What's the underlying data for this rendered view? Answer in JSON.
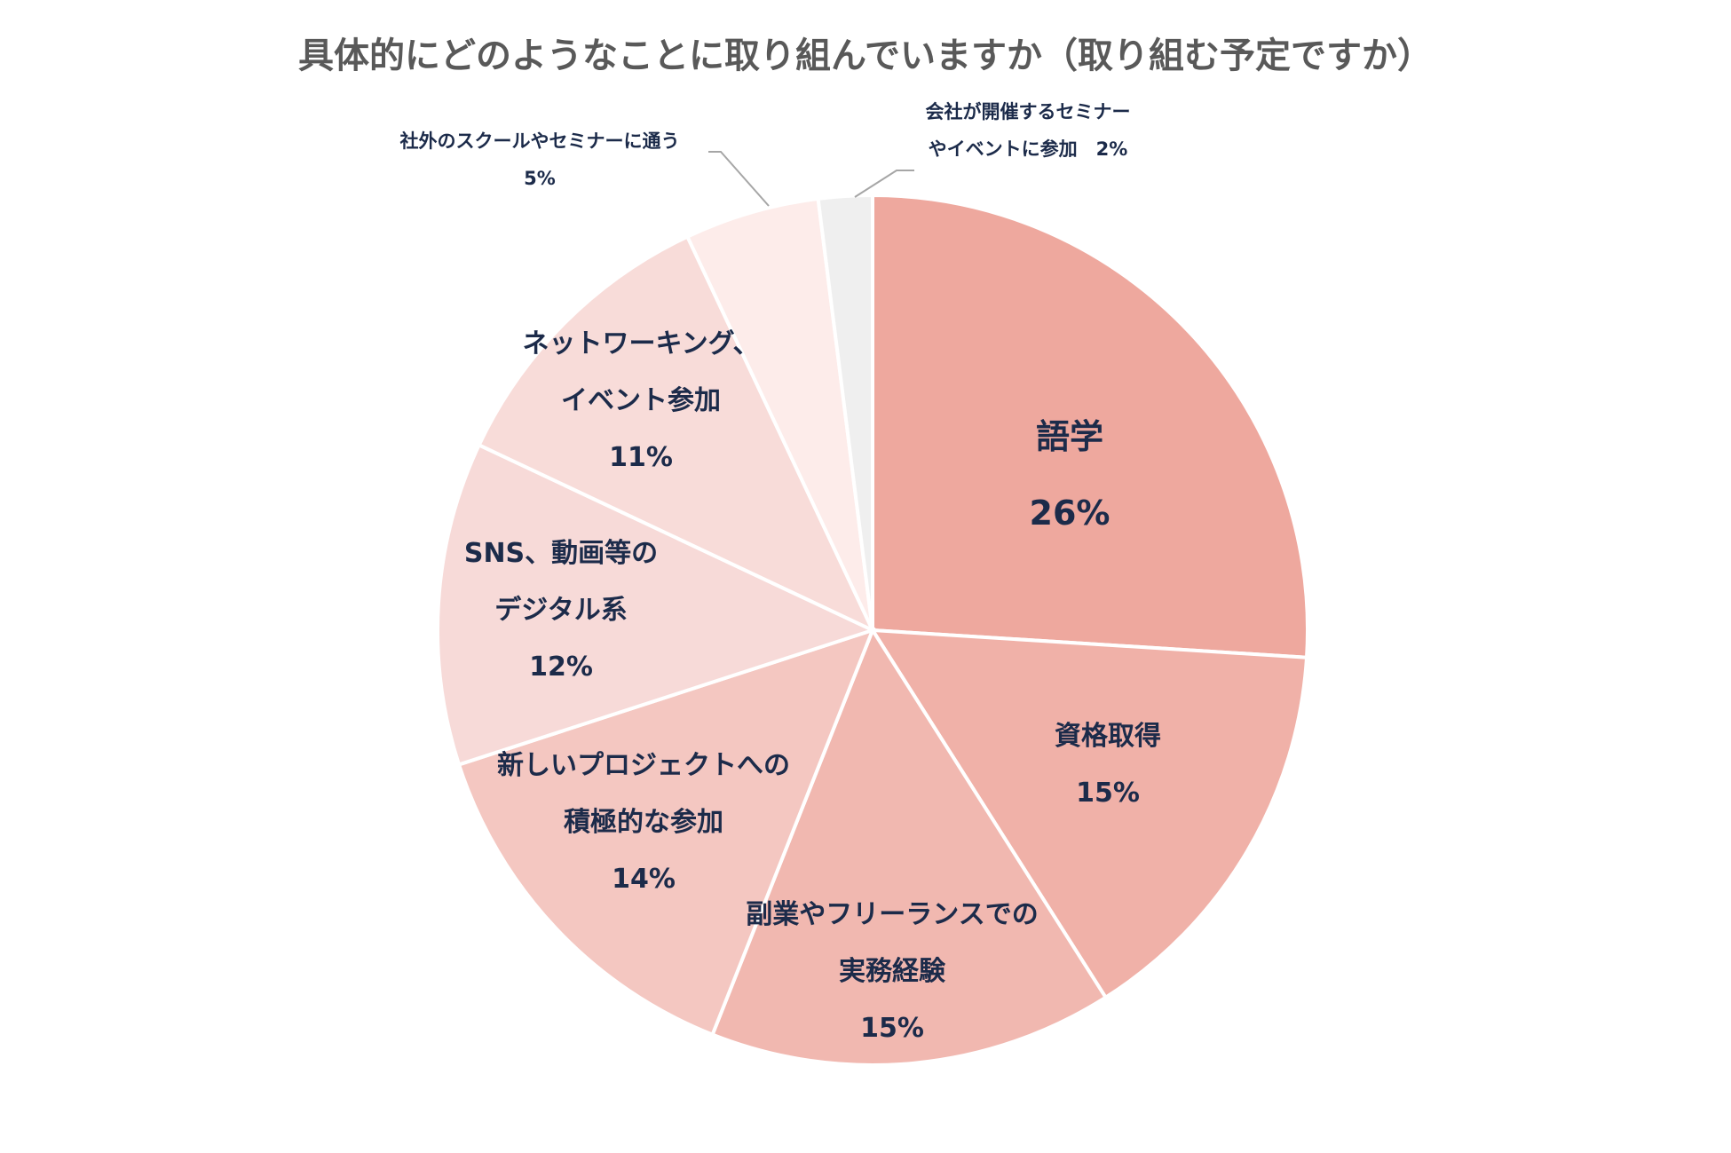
{
  "chart_data": {
    "type": "pie",
    "title": "具体的にどのようなことに取り組んでいますか（取り組む予定ですか）",
    "start_angle_deg": 0,
    "direction": "clockwise",
    "slices": [
      {
        "label": "語学",
        "value": 26,
        "display": "26%",
        "color": "#eea89e"
      },
      {
        "label": "資格取得",
        "value": 15,
        "display": "15%",
        "color": "#f0b1a8"
      },
      {
        "label": "副業やフリーランスでの実務経験",
        "value": 15,
        "display": "15%",
        "color": "#f1b8b0"
      },
      {
        "label": "新しいプロジェクトへの積極的な参加",
        "value": 14,
        "display": "14%",
        "color": "#f4c7c1"
      },
      {
        "label": "SNS、動画等のデジタル系",
        "value": 12,
        "display": "12%",
        "color": "#f7dad8"
      },
      {
        "label": "ネットワーキング、イベント参加",
        "value": 11,
        "display": "11%",
        "color": "#f8dcd9"
      },
      {
        "label": "社外のスクールやセミナーに通う",
        "value": 5,
        "display": "5%",
        "color": "#fdecea"
      },
      {
        "label": "会社が開催するセミナーやイベントに参加",
        "value": 2,
        "display": "2%",
        "color": "#efefef"
      }
    ]
  },
  "labels": {
    "gogaku": {
      "line1": "語学",
      "line2": "26%"
    },
    "shikaku": {
      "line1": "資格取得",
      "line2": "15%"
    },
    "fukugyo": {
      "line1": "副業やフリーランスでの",
      "line2": "実務経験",
      "line3": "15%"
    },
    "project": {
      "line1": "新しいプロジェクトへの",
      "line2": "積極的な参加",
      "line3": "14%"
    },
    "sns": {
      "line1": "SNS、動画等の",
      "line2": "デジタル系",
      "line3": "12%"
    },
    "network": {
      "line1": "ネットワーキング、",
      "line2": "イベント参加",
      "line3": "11%"
    },
    "school": {
      "line1": "社外のスクールやセミナーに通う",
      "line2": "5%"
    },
    "company": {
      "line1": "会社が開催するセミナー",
      "line2": "やイベントに参加　2%"
    }
  }
}
